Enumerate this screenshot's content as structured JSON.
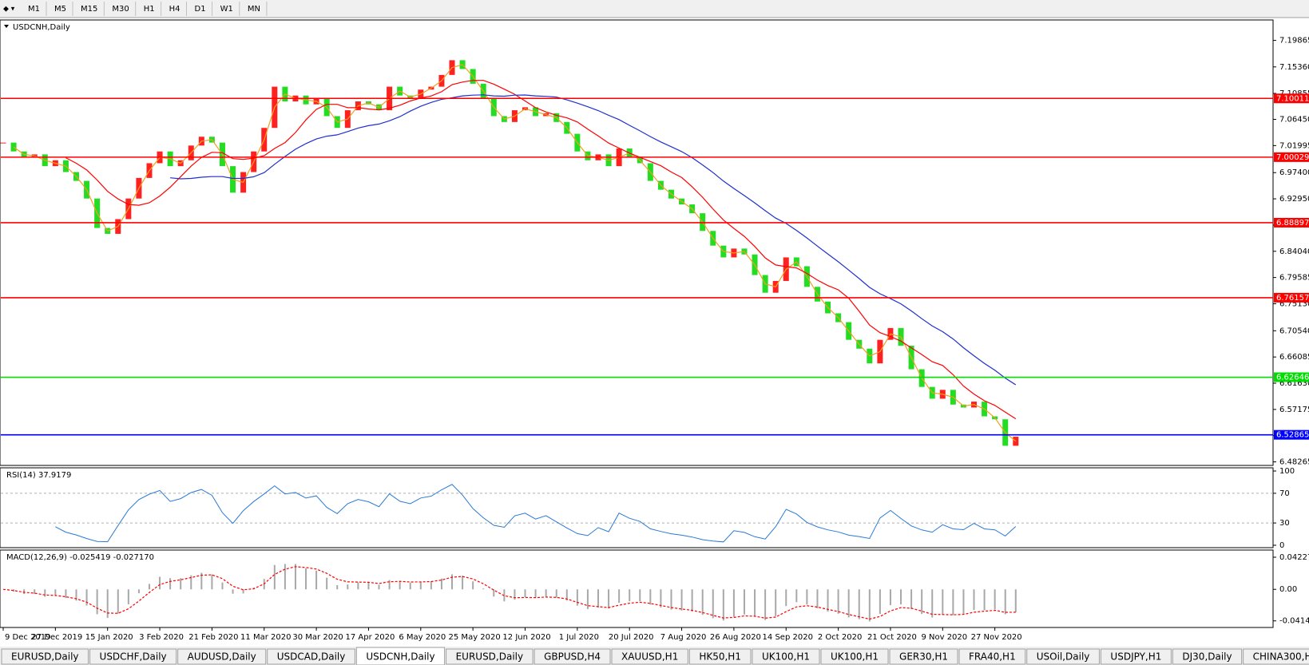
{
  "toolbar": {
    "timeframes": [
      "M1",
      "M5",
      "M15",
      "M30",
      "H1",
      "H4",
      "D1",
      "W1",
      "MN"
    ]
  },
  "chart_data": {
    "type": "candlestick",
    "symbol": "USDCNH,Daily",
    "quote": [
      6.54054,
      6.54513,
      6.52186,
      6.52542
    ],
    "categories": [
      "9 Dec 2019",
      null,
      null,
      null,
      null,
      "27 Dec 2019",
      null,
      null,
      null,
      null,
      "15 Jan 2020",
      null,
      null,
      null,
      null,
      "3 Feb 2020",
      null,
      null,
      null,
      null,
      "21 Feb 2020",
      null,
      null,
      null,
      null,
      "11 Mar 2020",
      null,
      null,
      null,
      null,
      "30 Mar 2020",
      null,
      null,
      null,
      null,
      "17 Apr 2020",
      null,
      null,
      null,
      null,
      "6 May 2020",
      null,
      null,
      null,
      null,
      "25 May 2020",
      null,
      null,
      null,
      null,
      "12 Jun 2020",
      null,
      null,
      null,
      null,
      "1 Jul 2020",
      null,
      null,
      null,
      null,
      "20 Jul 2020",
      null,
      null,
      null,
      null,
      "7 Aug 2020",
      null,
      null,
      null,
      null,
      "26 Aug 2020",
      null,
      null,
      null,
      null,
      "14 Sep 2020",
      null,
      null,
      null,
      null,
      "2 Oct 2020",
      null,
      null,
      null,
      null,
      "21 Oct 2020",
      null,
      null,
      null,
      null,
      "9 Nov 2020",
      null,
      null,
      null,
      null,
      "27 Nov 2020",
      null,
      null
    ],
    "close": [
      7.025,
      7.01,
      7.0,
      7.005,
      6.985,
      6.995,
      6.975,
      6.96,
      6.93,
      6.88,
      6.87,
      6.895,
      6.93,
      6.965,
      6.99,
      7.01,
      6.985,
      6.995,
      7.02,
      7.035,
      7.025,
      6.985,
      6.94,
      6.975,
      7.01,
      7.05,
      7.12,
      7.095,
      7.105,
      7.09,
      7.1,
      7.07,
      7.05,
      7.08,
      7.095,
      7.09,
      7.08,
      7.12,
      7.105,
      7.1,
      7.115,
      7.12,
      7.14,
      7.165,
      7.15,
      7.125,
      7.1,
      7.07,
      7.06,
      7.08,
      7.085,
      7.07,
      7.075,
      7.06,
      7.04,
      7.01,
      6.995,
      7.005,
      6.985,
      7.015,
      7.0,
      6.99,
      6.96,
      6.945,
      6.93,
      6.92,
      6.905,
      6.875,
      6.85,
      6.83,
      6.845,
      6.835,
      6.8,
      6.77,
      6.79,
      6.83,
      6.815,
      6.78,
      6.755,
      6.735,
      6.72,
      6.69,
      6.675,
      6.65,
      6.69,
      6.71,
      6.68,
      6.64,
      6.61,
      6.59,
      6.605,
      6.58,
      6.575,
      6.585,
      6.56,
      6.555,
      6.51,
      6.52542
    ],
    "up_color": "#ff2020",
    "down_color": "#22dd22",
    "ma_colors": [
      "#f0a020",
      "#ff0000",
      "#2030d0"
    ],
    "ylim": [
      6.478,
      7.232
    ],
    "yticks": [
      7.19865,
      {
        "value": 7.1536,
        "label": "7.15360"
      },
      7.10855,
      {
        "value": 7.0645,
        "label": "7.06450"
      },
      7.01995,
      {
        "value": 6.974,
        "label": "6.97400"
      },
      {
        "value": 6.9295,
        "label": "6.92950"
      },
      6.88495,
      {
        "value": 6.8404,
        "label": "6.84040"
      },
      6.79585,
      {
        "value": 6.7513,
        "label": "6.75130"
      },
      {
        "value": 6.7054,
        "label": "6.70540"
      },
      6.66085,
      {
        "value": 6.6163,
        "label": "6.61630"
      },
      6.57175,
      {
        "value": 6.5272,
        "label": "6.52720"
      },
      6.48265
    ],
    "levels": [
      {
        "value": 7.10011,
        "color": "#ff0000"
      },
      {
        "value": 7.00029,
        "color": "#ff0000"
      },
      {
        "value": 6.88897,
        "color": "#ff0000"
      },
      {
        "value": 6.76157,
        "color": "#ff0000"
      },
      {
        "value": 6.62646,
        "color": "#00dd00"
      },
      {
        "value": 6.52865,
        "color": "#0000ff"
      }
    ]
  },
  "rsi": {
    "label": "RSI(14) 37.9179",
    "ylim": [
      0,
      100
    ],
    "yticks": [
      100,
      70,
      30,
      0
    ],
    "levels": [
      70,
      30
    ],
    "color": "#2a7ad5"
  },
  "macd": {
    "label": "MACD(12,26,9) -0.025419 -0.027170",
    "ylim": [
      -0.047,
      0.0475
    ],
    "yticks": [
      0.042275,
      {
        "value": 0,
        "label": "0.00"
      },
      -0.04148
    ],
    "hist_color": "#a8a8a8",
    "signal_color": "#ff0000"
  },
  "tabs": [
    "EURUSD,Daily",
    "USDCHF,Daily",
    "AUDUSD,Daily",
    "USDCAD,Daily",
    "USDCNH,Daily",
    "EURUSD,Daily",
    "GBPUSD,H4",
    "XAUUSD,H1",
    "HK50,H1",
    "UK100,H1",
    "UK100,H1",
    "GER30,H1",
    "FRA40,H1",
    "USOil,Daily",
    "USDJPY,H1",
    "DJ30,Daily",
    "CHINA300,H1",
    "USOil,H1"
  ],
  "active_tab": 4
}
